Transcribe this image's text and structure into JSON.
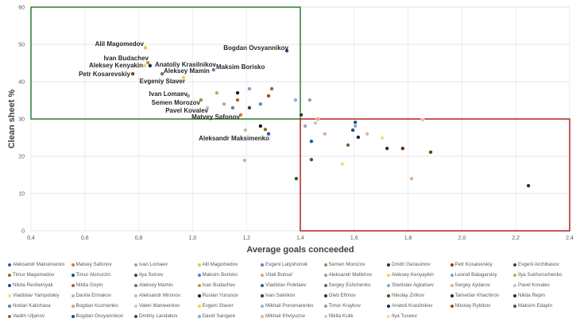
{
  "chart_data": {
    "type": "scatter",
    "title": "",
    "xlabel": "Average goals conceeded",
    "ylabel": "Clean sheet %",
    "xlim": [
      0.4,
      2.4
    ],
    "ylim": [
      0,
      60
    ],
    "x_ticks": [
      "0,4",
      "0,6",
      "0,8",
      "1,0",
      "1,2",
      "1,4",
      "1,6",
      "1,8",
      "2,0",
      "2,2",
      "2,4"
    ],
    "y_ticks": [
      "0",
      "10",
      "20",
      "30",
      "40",
      "50",
      "60"
    ],
    "grid": true,
    "legend_placement": "bottom",
    "regions": [
      {
        "name": "top-left",
        "x": [
          0.4,
          1.4
        ],
        "y": [
          30,
          60
        ],
        "color": "#2e7d32"
      },
      {
        "name": "bottom-right",
        "x": [
          1.4,
          2.4
        ],
        "y": [
          0,
          30
        ],
        "color": "#b22222"
      }
    ],
    "points": [
      {
        "label": "Alil Magomedov",
        "x": 0.825,
        "y": 49.1,
        "color": "#e8c14a"
      },
      {
        "label": "Ivan Budachev",
        "x": 0.834,
        "y": 45.1,
        "color": "#b89a30"
      },
      {
        "label": "Aleksey Kenyakin",
        "x": 0.822,
        "y": 44.3,
        "color": "#f0d060"
      },
      {
        "label": "Anatoliy Krasilnikov",
        "x": 0.842,
        "y": 44.3,
        "color": "#14285a"
      },
      {
        "label": "Petr Kosarevskiy",
        "x": 0.778,
        "y": 42.1,
        "color": "#8b3a0f"
      },
      {
        "label": "Aleksey Mamin",
        "x": 0.887,
        "y": 42.1,
        "color": "#707070"
      },
      {
        "label": "Maksim Borisko",
        "x": 1.078,
        "y": 43.2,
        "color": "#5b7fbf"
      },
      {
        "label": "Evgeniy Staver",
        "x": 0.966,
        "y": 41.1,
        "color": "#f0d050"
      },
      {
        "label": "Bogdan Ovsyannikov",
        "x": 1.35,
        "y": 48.3,
        "color": "#1f4e79"
      },
      {
        "label": "Ivan Lomaev",
        "x": 0.984,
        "y": 36.2,
        "color": "#a0a0a0"
      },
      {
        "label": "Semen Morozov",
        "x": 1.031,
        "y": 35.1,
        "color": "#6aa84f"
      },
      {
        "label": "Pavel Kovalev",
        "x": 1.055,
        "y": 33.0,
        "color": "#c0c0c0"
      },
      {
        "label": "Matvey Safonov",
        "x": 1.179,
        "y": 31.1,
        "color": "#d9773a"
      },
      {
        "label": "Aleksandr Maksimenko",
        "x": 1.282,
        "y": 26.0,
        "color": "#2e5fa3"
      },
      {
        "label": "",
        "x": 1.09,
        "y": 37.0,
        "color": "#90c070"
      },
      {
        "label": "",
        "x": 1.167,
        "y": 37.0,
        "color": "#101830"
      },
      {
        "label": "",
        "x": 1.211,
        "y": 38.1,
        "color": "#7fa0d0"
      },
      {
        "label": "",
        "x": 1.294,
        "y": 38.1,
        "color": "#8a7020"
      },
      {
        "label": "",
        "x": 1.282,
        "y": 36.2,
        "color": "#a04a1a"
      },
      {
        "label": "",
        "x": 1.167,
        "y": 35.1,
        "color": "#c05a1a"
      },
      {
        "label": "",
        "x": 1.117,
        "y": 34.0,
        "color": "#d8a070"
      },
      {
        "label": "",
        "x": 1.149,
        "y": 33.0,
        "color": "#6080b0"
      },
      {
        "label": "",
        "x": 1.211,
        "y": 33.0,
        "color": "#404040"
      },
      {
        "label": "",
        "x": 1.252,
        "y": 34.0,
        "color": "#5b86c5"
      },
      {
        "label": "",
        "x": 1.382,
        "y": 35.1,
        "color": "#90b0e0"
      },
      {
        "label": "",
        "x": 1.435,
        "y": 35.1,
        "color": "#a0a0a0"
      },
      {
        "label": "",
        "x": 1.403,
        "y": 31.1,
        "color": "#203a10"
      },
      {
        "label": "",
        "x": 1.465,
        "y": 30.0,
        "color": "#e8a070"
      },
      {
        "label": "",
        "x": 1.854,
        "y": 29.8,
        "color": "#f0b8b8"
      },
      {
        "label": "",
        "x": 1.456,
        "y": 28.9,
        "color": "#c8c8c8"
      },
      {
        "label": "",
        "x": 1.418,
        "y": 28.1,
        "color": "#8ea8d0"
      },
      {
        "label": "",
        "x": 1.604,
        "y": 29.1,
        "color": "#1f4e9a"
      },
      {
        "label": "",
        "x": 1.604,
        "y": 28.1,
        "color": "#90a8d0"
      },
      {
        "label": "",
        "x": 1.595,
        "y": 27.0,
        "color": "#1f4e79"
      },
      {
        "label": "",
        "x": 1.491,
        "y": 26.0,
        "color": "#e0b090"
      },
      {
        "label": "",
        "x": 1.648,
        "y": 26.0,
        "color": "#e0b898"
      },
      {
        "label": "",
        "x": 1.615,
        "y": 25.1,
        "color": "#0f2a50"
      },
      {
        "label": "",
        "x": 1.704,
        "y": 24.9,
        "color": "#f0e090"
      },
      {
        "label": "",
        "x": 1.441,
        "y": 24.0,
        "color": "#2060a0"
      },
      {
        "label": "",
        "x": 1.577,
        "y": 23.0,
        "color": "#4f7a3a"
      },
      {
        "label": "",
        "x": 1.722,
        "y": 22.1,
        "color": "#303030"
      },
      {
        "label": "",
        "x": 1.78,
        "y": 22.1,
        "color": "#5a2a0a"
      },
      {
        "label": "",
        "x": 1.884,
        "y": 21.1,
        "color": "#5a4a10"
      },
      {
        "label": "",
        "x": 1.441,
        "y": 19.1,
        "color": "#505050"
      },
      {
        "label": "",
        "x": 1.556,
        "y": 17.9,
        "color": "#f0e080"
      },
      {
        "label": "",
        "x": 1.813,
        "y": 14.0,
        "color": "#e0b090"
      },
      {
        "label": "",
        "x": 2.247,
        "y": 12.1,
        "color": "#1f2f5a"
      },
      {
        "label": "",
        "x": 1.385,
        "y": 14.0,
        "color": "#2d5a1a"
      },
      {
        "label": "",
        "x": 1.252,
        "y": 28.1,
        "color": "#101830"
      },
      {
        "label": "",
        "x": 1.27,
        "y": 27.2,
        "color": "#8a6d1e"
      },
      {
        "label": "",
        "x": 1.196,
        "y": 27.0,
        "color": "#a8d090"
      },
      {
        "label": "",
        "x": 1.193,
        "y": 18.9,
        "color": "#a0b8e0"
      }
    ],
    "legend": [
      {
        "name": "Aleksandr Maksimenko",
        "color": "#2e5fa3"
      },
      {
        "name": "Matvey Safonov",
        "color": "#d9773a"
      },
      {
        "name": "Ivan Lomaev",
        "color": "#a0a0a0"
      },
      {
        "name": "Alil Magomedov",
        "color": "#e8c14a"
      },
      {
        "name": "Evgeni Latyshonok",
        "color": "#5b86c5"
      },
      {
        "name": "Semen Morozov",
        "color": "#6aa84f"
      },
      {
        "name": "Dmitri Gerasimov",
        "color": "#1f2f5a"
      },
      {
        "name": "Petr Kosarevskiy",
        "color": "#8b3a0f"
      },
      {
        "name": "Evgeni Archibasov",
        "color": "#404040"
      },
      {
        "name": "Timur Magomedov",
        "color": "#8a6d1e"
      },
      {
        "name": "Timur Akmurzin",
        "color": "#1f4e79"
      },
      {
        "name": "Ilya Svinov",
        "color": "#2f5a1e"
      },
      {
        "name": "Maksim Borisko",
        "color": "#5b7fbf"
      },
      {
        "name": "Vitali Botnar'",
        "color": "#e8a070"
      },
      {
        "name": "Aleksandr Melikhov",
        "color": "#a0a0a0"
      },
      {
        "name": "Aleksey Kenyaykin",
        "color": "#f0d060"
      },
      {
        "name": "Leonid Balagarskiy",
        "color": "#7fa0d0"
      },
      {
        "name": "Ilya Sukhoruchenko",
        "color": "#90c070"
      },
      {
        "name": "Nikita Reshetnyak",
        "color": "#1f4e9a"
      },
      {
        "name": "Nikita Goylo",
        "color": "#c05a1a"
      },
      {
        "name": "Aleksey Mamin",
        "color": "#707070"
      },
      {
        "name": "Ivan Budachev",
        "color": "#b89a30"
      },
      {
        "name": "Vladislav Poletaev",
        "color": "#2060a0"
      },
      {
        "name": "Sergey Eshchenko",
        "color": "#4f7a3a"
      },
      {
        "name": "Stanislav Agkatsev",
        "color": "#8ea8d0"
      },
      {
        "name": "Sergey Aydarov",
        "color": "#e0b090"
      },
      {
        "name": "Pavel Kovalev",
        "color": "#c0c0c0"
      },
      {
        "name": "Vladislav Yampolskiy",
        "color": "#f0e090"
      },
      {
        "name": "Danila Ermakov",
        "color": "#a0b8e0"
      },
      {
        "name": "Aleksandr Mironov",
        "color": "#a8d090"
      },
      {
        "name": "Ruslan Yunusov",
        "color": "#101830"
      },
      {
        "name": "Ivan Salnikov",
        "color": "#5a2a0a"
      },
      {
        "name": "Gleb Efimov",
        "color": "#303030"
      },
      {
        "name": "Nikolay Zirikov",
        "color": "#5a4a10"
      },
      {
        "name": "Tamerlan Khachirov",
        "color": "#0f2a50"
      },
      {
        "name": "Nikita Repin",
        "color": "#203a10"
      },
      {
        "name": "Nodari Kalichava",
        "color": "#6080b0"
      },
      {
        "name": "Bogdan Kuzmenko",
        "color": "#d8a070"
      },
      {
        "name": "Valeri Matveenkov",
        "color": "#c8c8c8"
      },
      {
        "name": "Evgeni Staver",
        "color": "#f0d050"
      },
      {
        "name": "Mikhail Ponomarenko",
        "color": "#90b0e0"
      },
      {
        "name": "Timur Kraykov",
        "color": "#80b070"
      },
      {
        "name": "Anatoli Krasilnikov",
        "color": "#14285a"
      },
      {
        "name": "Nikolay Rybikov",
        "color": "#a04a1a"
      },
      {
        "name": "Maksim Edapin",
        "color": "#505050"
      },
      {
        "name": "Vadim Uljanov",
        "color": "#8a7020"
      },
      {
        "name": "Bogdan Ovsyannikov",
        "color": "#1f4e79"
      },
      {
        "name": "Dmitriy Landakov",
        "color": "#2d5a1a"
      },
      {
        "name": "David Sangare",
        "color": "#90a8d0"
      },
      {
        "name": "Mikhail Khviyuzov",
        "color": "#e0b898"
      },
      {
        "name": "Nikita Kulik",
        "color": "#d0d0d0"
      },
      {
        "name": "Ilya Tuseev",
        "color": "#f0e080"
      }
    ]
  }
}
